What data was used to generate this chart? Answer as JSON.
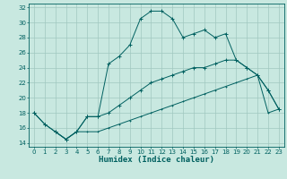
{
  "title": "",
  "xlabel": "Humidex (Indice chaleur)",
  "ylabel": "",
  "bg_color": "#c8e8e0",
  "grid_color": "#a0c8c0",
  "line_color": "#006060",
  "xlim": [
    -0.5,
    23.5
  ],
  "ylim": [
    13.5,
    32.5
  ],
  "yticks": [
    14,
    16,
    18,
    20,
    22,
    24,
    26,
    28,
    30,
    32
  ],
  "xticks": [
    0,
    1,
    2,
    3,
    4,
    5,
    6,
    7,
    8,
    9,
    10,
    11,
    12,
    13,
    14,
    15,
    16,
    17,
    18,
    19,
    20,
    21,
    22,
    23
  ],
  "curve1_x": [
    0,
    1,
    2,
    3,
    4,
    5,
    6,
    7,
    8,
    9,
    10,
    11,
    12,
    13,
    14,
    15,
    16,
    17,
    18,
    19,
    20,
    21,
    22,
    23
  ],
  "curve1_y": [
    18,
    16.5,
    15.5,
    14.5,
    15.5,
    17.5,
    17.5,
    24.5,
    25.5,
    27,
    30.5,
    31.5,
    31.5,
    30.5,
    28,
    28.5,
    29,
    28,
    28.5,
    25,
    24,
    23,
    21,
    18.5
  ],
  "curve2_x": [
    0,
    1,
    2,
    3,
    4,
    5,
    6,
    7,
    8,
    9,
    10,
    11,
    12,
    13,
    14,
    15,
    16,
    17,
    18,
    19,
    20,
    21,
    22,
    23
  ],
  "curve2_y": [
    18,
    16.5,
    15.5,
    14.5,
    15.5,
    17.5,
    17.5,
    18,
    19,
    20,
    21,
    22,
    22.5,
    23,
    23.5,
    24,
    24,
    24.5,
    25,
    25,
    24,
    23,
    21,
    18.5
  ],
  "curve3_x": [
    2,
    3,
    4,
    5,
    6,
    7,
    8,
    9,
    10,
    11,
    12,
    13,
    14,
    15,
    16,
    17,
    18,
    19,
    20,
    21,
    22,
    23
  ],
  "curve3_y": [
    15.5,
    14.5,
    15.5,
    15.5,
    15.5,
    16,
    16.5,
    17,
    17.5,
    18,
    18.5,
    19,
    19.5,
    20,
    20.5,
    21,
    21.5,
    22,
    22.5,
    23,
    18,
    18.5
  ],
  "xlabel_fontsize": 6.5,
  "tick_fontsize": 5
}
